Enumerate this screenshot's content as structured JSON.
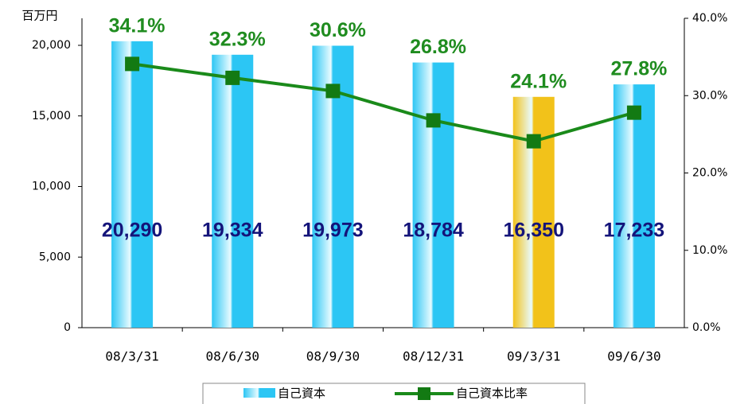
{
  "chart_data": {
    "type": "bar",
    "y_label": "百万円",
    "categories": [
      "08/3/31",
      "08/6/30",
      "08/9/30",
      "08/12/31",
      "09/3/31",
      "09/6/30"
    ],
    "series": [
      {
        "name": "自己資本",
        "type": "bar",
        "colors": [
          "#2cc6f4",
          "#2cc6f4",
          "#2cc6f4",
          "#2cc6f4",
          "#f2c21a",
          "#2cc6f4"
        ],
        "values": [
          20290,
          19334,
          19973,
          18784,
          16350,
          17233
        ],
        "value_labels": [
          "20,290",
          "19,334",
          "19,973",
          "18,784",
          "16,350",
          "17,233"
        ]
      },
      {
        "name": "自己資本比率",
        "type": "line",
        "axis": "y2",
        "color": "#1a8a1a",
        "values": [
          34.1,
          32.3,
          30.6,
          26.8,
          24.1,
          27.8
        ],
        "value_labels": [
          "34.1%",
          "32.3%",
          "30.6%",
          "26.8%",
          "24.1%",
          "27.8%"
        ]
      }
    ],
    "ylim": [
      0,
      22000
    ],
    "yticks": [
      0,
      {
        "value": 5000,
        "label": "5,000"
      },
      {
        "value": 10000,
        "label": "10,000"
      },
      {
        "value": 15000,
        "label": "15,000"
      },
      {
        "value": 20000,
        "label": "20,000"
      }
    ],
    "y2lim": [
      0,
      40
    ],
    "y2ticks": [
      {
        "value": 0,
        "label": "0.0%"
      },
      {
        "value": 10,
        "label": "10.0%"
      },
      {
        "value": 20,
        "label": "20.0%"
      },
      {
        "value": 30,
        "label": "30.0%"
      },
      {
        "value": 40,
        "label": "40.0%"
      }
    ],
    "legend": "bottom"
  }
}
